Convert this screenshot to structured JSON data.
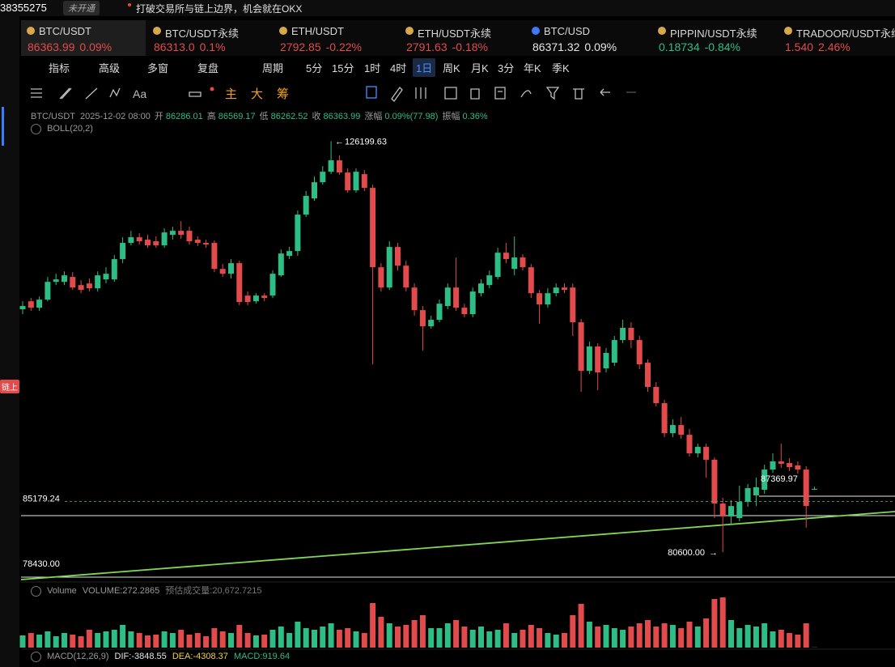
{
  "top_bar": {
    "account": "38355275",
    "status": "未开通",
    "banner": "打破交易所与链上边界，机会就在OKX"
  },
  "tickers": [
    {
      "name": "BTC/USDT",
      "price": "86363.99",
      "change": "0.09%",
      "color": "#e14b4b"
    },
    {
      "name": "BTC/USDT永续",
      "price": "86313.0",
      "change": "0.1%",
      "color": "#e14b4b"
    },
    {
      "name": "ETH/USDT",
      "price": "2792.85",
      "change": "-0.22%",
      "color": "#e14b4b"
    },
    {
      "name": "ETH/USDT永续",
      "price": "2791.63",
      "change": "-0.18%",
      "color": "#e14b4b"
    },
    {
      "name": "BTC/USD",
      "price": "86371.32",
      "change": "0.09%",
      "color": "#e6e6e6"
    },
    {
      "name": "PIPPIN/USDT永续",
      "price": "0.18734",
      "change": "-0.84%",
      "color": "#2ebd85"
    },
    {
      "name": "TRADOOR/USDT永续",
      "price": "1.540",
      "change": "2.46%",
      "color": "#e14b4b"
    }
  ],
  "toolbar": [
    "指标",
    "高级",
    "多窗",
    "复盘",
    "周期",
    "5分",
    "15分",
    "1时",
    "4时",
    "1日",
    "周K",
    "月K",
    "3分",
    "年K",
    "季K"
  ],
  "drawing_tools": [
    "主",
    "大",
    "筹"
  ],
  "sidebar": {
    "tag": "链上"
  },
  "chart_data": {
    "type": "candlestick",
    "symbol": "BTC/USDT",
    "time": "2025-12-02 08:00",
    "info_labels": [
      "开",
      "高",
      "低",
      "收"
    ],
    "change_label": "涨幅",
    "change": "0.09%(77.98)",
    "amplitude_label": "振幅",
    "amplitude": "0.36%",
    "boll": "BOLL(20,2)",
    "volume_title": "Volume",
    "volume_label": "VOLUME:",
    "volume_estimate": "预估成交量:20,672.7215",
    "macd": "MACD(12,26,9)",
    "dif": "DIF:-3848.55",
    "dea": "DEA:-4308.37",
    "macd_value": "MACD:919.64",
    "log_scale": true,
    "ylim": [
      78430,
      130680
    ],
    "volume_ylim": [
      0,
      65000
    ],
    "up_color": "#2ebd85",
    "down_color": "#e14b4b",
    "price_labels": [
      {
        "value": 126199.63,
        "label": "126199.63"
      },
      {
        "value": 80600,
        "label": "80600.00"
      },
      {
        "value": 85179.24,
        "label": "85179.24"
      },
      {
        "value": 78430,
        "label": "78430.00"
      },
      {
        "value": 87369.97,
        "label": "87369.97"
      }
    ],
    "candles": [
      [
        105060,
        105980,
        104500,
        105430
      ],
      [
        105980,
        106360,
        104870,
        105240
      ],
      [
        105240,
        106540,
        104870,
        106170
      ],
      [
        106170,
        108830,
        105980,
        108250
      ],
      [
        108250,
        109210,
        107870,
        108540
      ],
      [
        108250,
        109500,
        107870,
        109020
      ],
      [
        108830,
        109410,
        107300,
        107580
      ],
      [
        107870,
        108440,
        106920,
        107300
      ],
      [
        108060,
        108640,
        107110,
        107490
      ],
      [
        107490,
        109500,
        107110,
        109020
      ],
      [
        108540,
        109990,
        108060,
        109210
      ],
      [
        108540,
        111460,
        108250,
        110970
      ],
      [
        110970,
        113650,
        110480,
        112950
      ],
      [
        112950,
        114450,
        112650,
        113650
      ],
      [
        113650,
        114150,
        112750,
        113150
      ],
      [
        113350,
        113950,
        112350,
        112650
      ],
      [
        113150,
        113750,
        112350,
        112650
      ],
      [
        112650,
        114760,
        112350,
        114250
      ],
      [
        113950,
        114960,
        113350,
        114450
      ],
      [
        114450,
        115670,
        113450,
        113950
      ],
      [
        114450,
        114960,
        112750,
        113150
      ],
      [
        113350,
        113750,
        112550,
        112950
      ],
      [
        112950,
        113350,
        112350,
        112750
      ],
      [
        112950,
        113250,
        109410,
        109790
      ],
      [
        109790,
        110380,
        108830,
        109210
      ],
      [
        109210,
        110970,
        108640,
        110480
      ],
      [
        110480,
        110770,
        105520,
        105890
      ],
      [
        106640,
        107110,
        105520,
        105890
      ],
      [
        105980,
        106920,
        105700,
        106640
      ],
      [
        106640,
        106920,
        105980,
        106360
      ],
      [
        106640,
        109600,
        106360,
        109210
      ],
      [
        109020,
        112150,
        108830,
        111650
      ],
      [
        111360,
        112450,
        110970,
        111950
      ],
      [
        111950,
        117010,
        111360,
        116490
      ],
      [
        116490,
        119520,
        116180,
        118890
      ],
      [
        118570,
        121430,
        118260,
        120680
      ],
      [
        120680,
        122830,
        120360,
        122070
      ],
      [
        122070,
        126199.63,
        121750,
        123600
      ],
      [
        123600,
        124250,
        121650,
        121970
      ],
      [
        121970,
        122510,
        119310,
        119620
      ],
      [
        119620,
        122510,
        119310,
        122070
      ],
      [
        121750,
        122290,
        119520,
        119940
      ],
      [
        119940,
        120360,
        98930,
        109990
      ],
      [
        109990,
        110480,
        107110,
        107580
      ],
      [
        107580,
        113150,
        107300,
        112450
      ],
      [
        112450,
        112950,
        109600,
        110180
      ],
      [
        110180,
        110770,
        107110,
        107580
      ],
      [
        107580,
        108060,
        104320,
        104960
      ],
      [
        104960,
        105430,
        100430,
        103130
      ],
      [
        103130,
        104320,
        102850,
        103860
      ],
      [
        103860,
        106170,
        103580,
        105700
      ],
      [
        105430,
        108060,
        105060,
        107580
      ],
      [
        107580,
        111170,
        104870,
        105240
      ],
      [
        105240,
        105700,
        104140,
        104500
      ],
      [
        104500,
        107580,
        104140,
        107110
      ],
      [
        106920,
        108540,
        106540,
        108060
      ],
      [
        107870,
        109600,
        107490,
        109020
      ],
      [
        108830,
        112350,
        108540,
        111750
      ],
      [
        111750,
        112950,
        110480,
        110970
      ],
      [
        109790,
        113750,
        109020,
        111170
      ],
      [
        111170,
        111560,
        109600,
        109990
      ],
      [
        109990,
        110380,
        106360,
        106920
      ],
      [
        106920,
        107300,
        103400,
        105610
      ],
      [
        105610,
        107490,
        105240,
        106920
      ],
      [
        106920,
        108060,
        106540,
        107580
      ],
      [
        107580,
        108060,
        106920,
        107300
      ],
      [
        107580,
        108060,
        102040,
        103580
      ],
      [
        103580,
        103950,
        96010,
        98230
      ],
      [
        98230,
        101410,
        97890,
        100880
      ],
      [
        100880,
        101230,
        96180,
        98060
      ],
      [
        98500,
        100700,
        98060,
        100170
      ],
      [
        99110,
        102040,
        98760,
        101590
      ],
      [
        101590,
        103860,
        101230,
        102950
      ],
      [
        102950,
        103580,
        100700,
        101590
      ],
      [
        101590,
        102040,
        98410,
        98930
      ],
      [
        99110,
        99460,
        96010,
        96520
      ],
      [
        96520,
        97030,
        94490,
        94830
      ],
      [
        94830,
        95160,
        91370,
        91770
      ],
      [
        91770,
        93160,
        91370,
        92590
      ],
      [
        92590,
        93410,
        91210,
        91610
      ],
      [
        91610,
        92180,
        89460,
        89780
      ],
      [
        89780,
        90730,
        89380,
        90410
      ],
      [
        90410,
        90730,
        87430,
        89150
      ],
      [
        89150,
        89380,
        83650,
        84990
      ],
      [
        84990,
        85520,
        80600,
        83800
      ],
      [
        83800,
        85290,
        83070,
        84760
      ],
      [
        83650,
        86660,
        83360,
        85140
      ],
      [
        85140,
        86810,
        84690,
        86430
      ],
      [
        85750,
        87430,
        84760,
        86510
      ],
      [
        86280,
        88670,
        85900,
        88200
      ],
      [
        88200,
        89780,
        87890,
        88990
      ],
      [
        88990,
        90730,
        88360,
        88760
      ],
      [
        88830,
        89310,
        88050,
        88440
      ],
      [
        88600,
        88990,
        87820,
        88200
      ],
      [
        88200,
        88520,
        82780,
        84760
      ],
      [
        86286.01,
        86569.17,
        86262.52,
        86363.99
      ]
    ],
    "volumes": [
      15000,
      18000,
      16000,
      20000,
      14000,
      18000,
      16000,
      14000,
      22000,
      18000,
      20000,
      22000,
      28000,
      20000,
      18000,
      15000,
      16000,
      20000,
      18000,
      22000,
      16000,
      18000,
      14000,
      24000,
      20000,
      18000,
      28000,
      18000,
      15000,
      16000,
      22000,
      26000,
      18000,
      32000,
      24000,
      22000,
      26000,
      30000,
      22000,
      24000,
      20000,
      18000,
      55000,
      38000,
      30000,
      26000,
      28000,
      34000,
      40000,
      24000,
      24000,
      30000,
      34000,
      26000,
      22000,
      26000,
      20000,
      22000,
      30000,
      18000,
      22000,
      28000,
      24000,
      18000,
      16000,
      18000,
      40000,
      54000,
      32000,
      26000,
      28000,
      24000,
      22000,
      26000,
      30000,
      34000,
      26000,
      30000,
      28000,
      24000,
      32000,
      26000,
      36000,
      60000,
      62000,
      34000,
      24000,
      28000,
      26000,
      30000,
      20000,
      22000,
      18000,
      16000,
      30000,
      272.2865
    ]
  }
}
